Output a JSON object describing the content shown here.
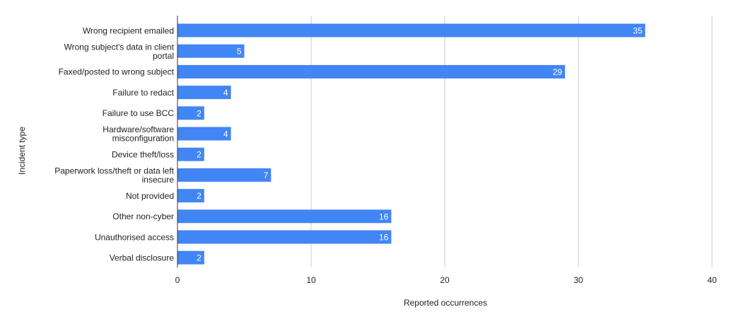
{
  "chart_data": {
    "type": "bar",
    "orientation": "horizontal",
    "title": "",
    "xlabel": "Reported occurrences",
    "ylabel": "Incident type",
    "xlim": [
      0,
      40
    ],
    "xticks": [
      0,
      10,
      20,
      30,
      40
    ],
    "grid": true,
    "bar_color": "#4285f4",
    "categories": [
      "Wrong recipient emailed",
      "Wrong subject's data in client portal",
      "Faxed/posted to wrong subject",
      "Failure to redact",
      "Failure to use BCC",
      "Hardware/software misconfiguration",
      "Device theft/loss",
      "Paperwork loss/theft or data left insecure",
      "Not provided",
      "Other non-cyber",
      "Unauthorised access",
      "Verbal disclosure"
    ],
    "category_lines": [
      [
        "Wrong recipient emailed"
      ],
      [
        "Wrong subject's data in client",
        "portal"
      ],
      [
        "Faxed/posted to wrong subject"
      ],
      [
        "Failure to redact"
      ],
      [
        "Failure to use BCC"
      ],
      [
        "Hardware/software",
        "misconfiguration"
      ],
      [
        "Device theft/loss"
      ],
      [
        "Paperwork loss/theft or data left",
        "insecure"
      ],
      [
        "Not provided"
      ],
      [
        "Other non-cyber"
      ],
      [
        "Unauthorised access"
      ],
      [
        "Verbal disclosure"
      ]
    ],
    "values": [
      35,
      5,
      29,
      4,
      2,
      4,
      2,
      7,
      2,
      16,
      16,
      2
    ]
  }
}
